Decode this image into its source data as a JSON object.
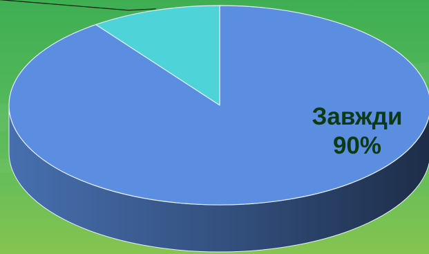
{
  "chart_data": {
    "type": "pie",
    "style": "3d",
    "slices": [
      {
        "label": "Завжди",
        "value": 90,
        "value_label": "90%",
        "color": "#5b8ee0"
      },
      {
        "label": "",
        "value": 10,
        "value_label": "",
        "color": "#4ed3d8"
      }
    ],
    "label_color": "#0c3a12",
    "leader_line": true
  }
}
